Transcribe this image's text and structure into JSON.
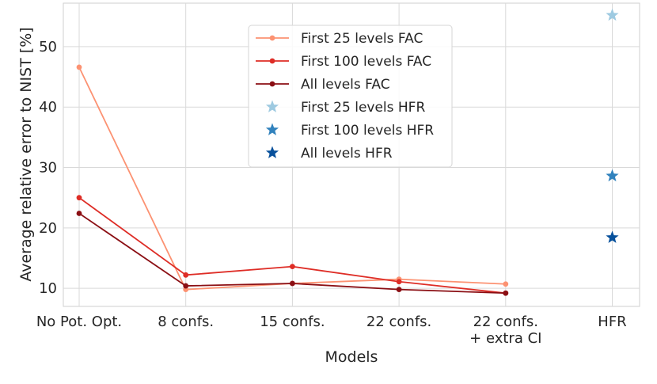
{
  "chart_data": {
    "type": "line",
    "title": "",
    "xlabel": "Models",
    "ylabel": "Average relative error to NIST [%]",
    "ylim": [
      7,
      57.2
    ],
    "yticks": [
      10,
      20,
      30,
      40,
      50
    ],
    "grid": true,
    "legend_position": "top-center",
    "categories": [
      "No Pot. Opt.",
      "8 confs.",
      "15 confs.",
      "22 confs.",
      "22 confs.\n+ extra CI",
      "HFR"
    ],
    "series": [
      {
        "name": "First 25 levels FAC",
        "marker": "circle",
        "color": "#fc9272",
        "values": [
          46.6,
          9.8,
          10.8,
          11.5,
          10.7,
          null
        ]
      },
      {
        "name": "First 100 levels FAC",
        "marker": "circle",
        "color": "#de2d26",
        "values": [
          25.0,
          12.2,
          13.6,
          11.1,
          9.2,
          null
        ]
      },
      {
        "name": "All levels FAC",
        "marker": "circle",
        "color": "#8b0f14",
        "values": [
          22.4,
          10.4,
          10.8,
          9.8,
          9.2,
          null
        ]
      },
      {
        "name": "First 25 levels HFR",
        "marker": "star",
        "color": "#9ecae1",
        "values": [
          null,
          null,
          null,
          null,
          null,
          55.2
        ]
      },
      {
        "name": "First 100 levels HFR",
        "marker": "star",
        "color": "#3182bd",
        "values": [
          null,
          null,
          null,
          null,
          null,
          28.6
        ]
      },
      {
        "name": "All levels HFR",
        "marker": "star",
        "color": "#08519c",
        "values": [
          null,
          null,
          null,
          null,
          null,
          18.4
        ]
      }
    ]
  }
}
